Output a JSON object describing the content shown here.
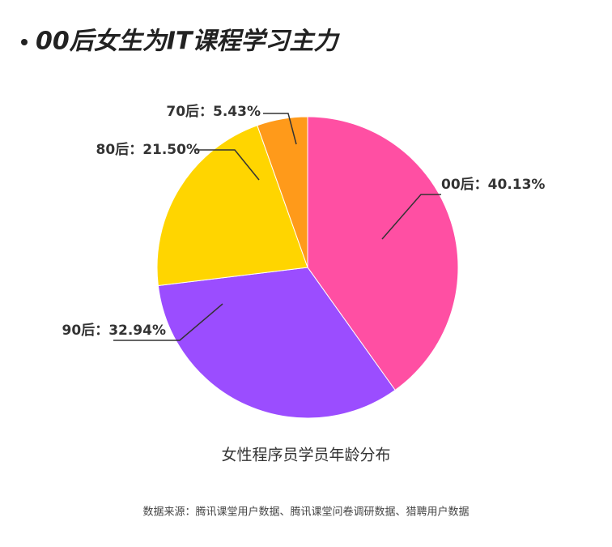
{
  "chart_data": {
    "type": "pie",
    "title": "00后女生为IT课程学习主力",
    "subtitle": "女性程序员学员年龄分布",
    "source": "数据来源：腾讯课堂用户数据、腾讯课堂问卷调研数据、猎聘用户数据",
    "values": [
      40.13,
      32.94,
      21.5,
      5.43
    ],
    "value_labels": [
      "00后：40.13%",
      "90后：32.94%",
      "80后：21.50%",
      "70后：5.43%"
    ],
    "colors": [
      "#ff4fa3",
      "#9b4dff",
      "#ffd500",
      "#ff9a1a"
    ]
  }
}
